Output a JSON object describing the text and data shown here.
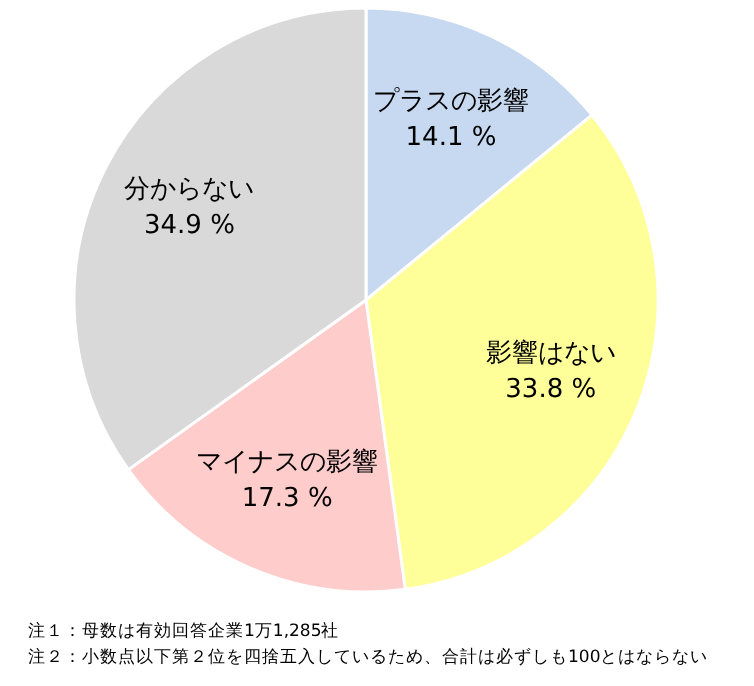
{
  "chart_data": {
    "type": "pie",
    "categories": [
      "プラスの影響",
      "影響はない",
      "マイナスの影響",
      "分からない"
    ],
    "values": [
      14.1,
      33.8,
      17.3,
      34.9
    ],
    "colors": [
      "#c6d9f1",
      "#ffff99",
      "#ffcccc",
      "#d9d9d9"
    ],
    "value_labels": [
      "14.1 %",
      "33.8 %",
      "17.3 %",
      "34.9 %"
    ],
    "annotations": [
      "注１：母数は有効回答企業1万1,285社",
      "注２：小数点以下第２位を四捨五入しているため、合計は必ずしも100とはならない"
    ]
  }
}
